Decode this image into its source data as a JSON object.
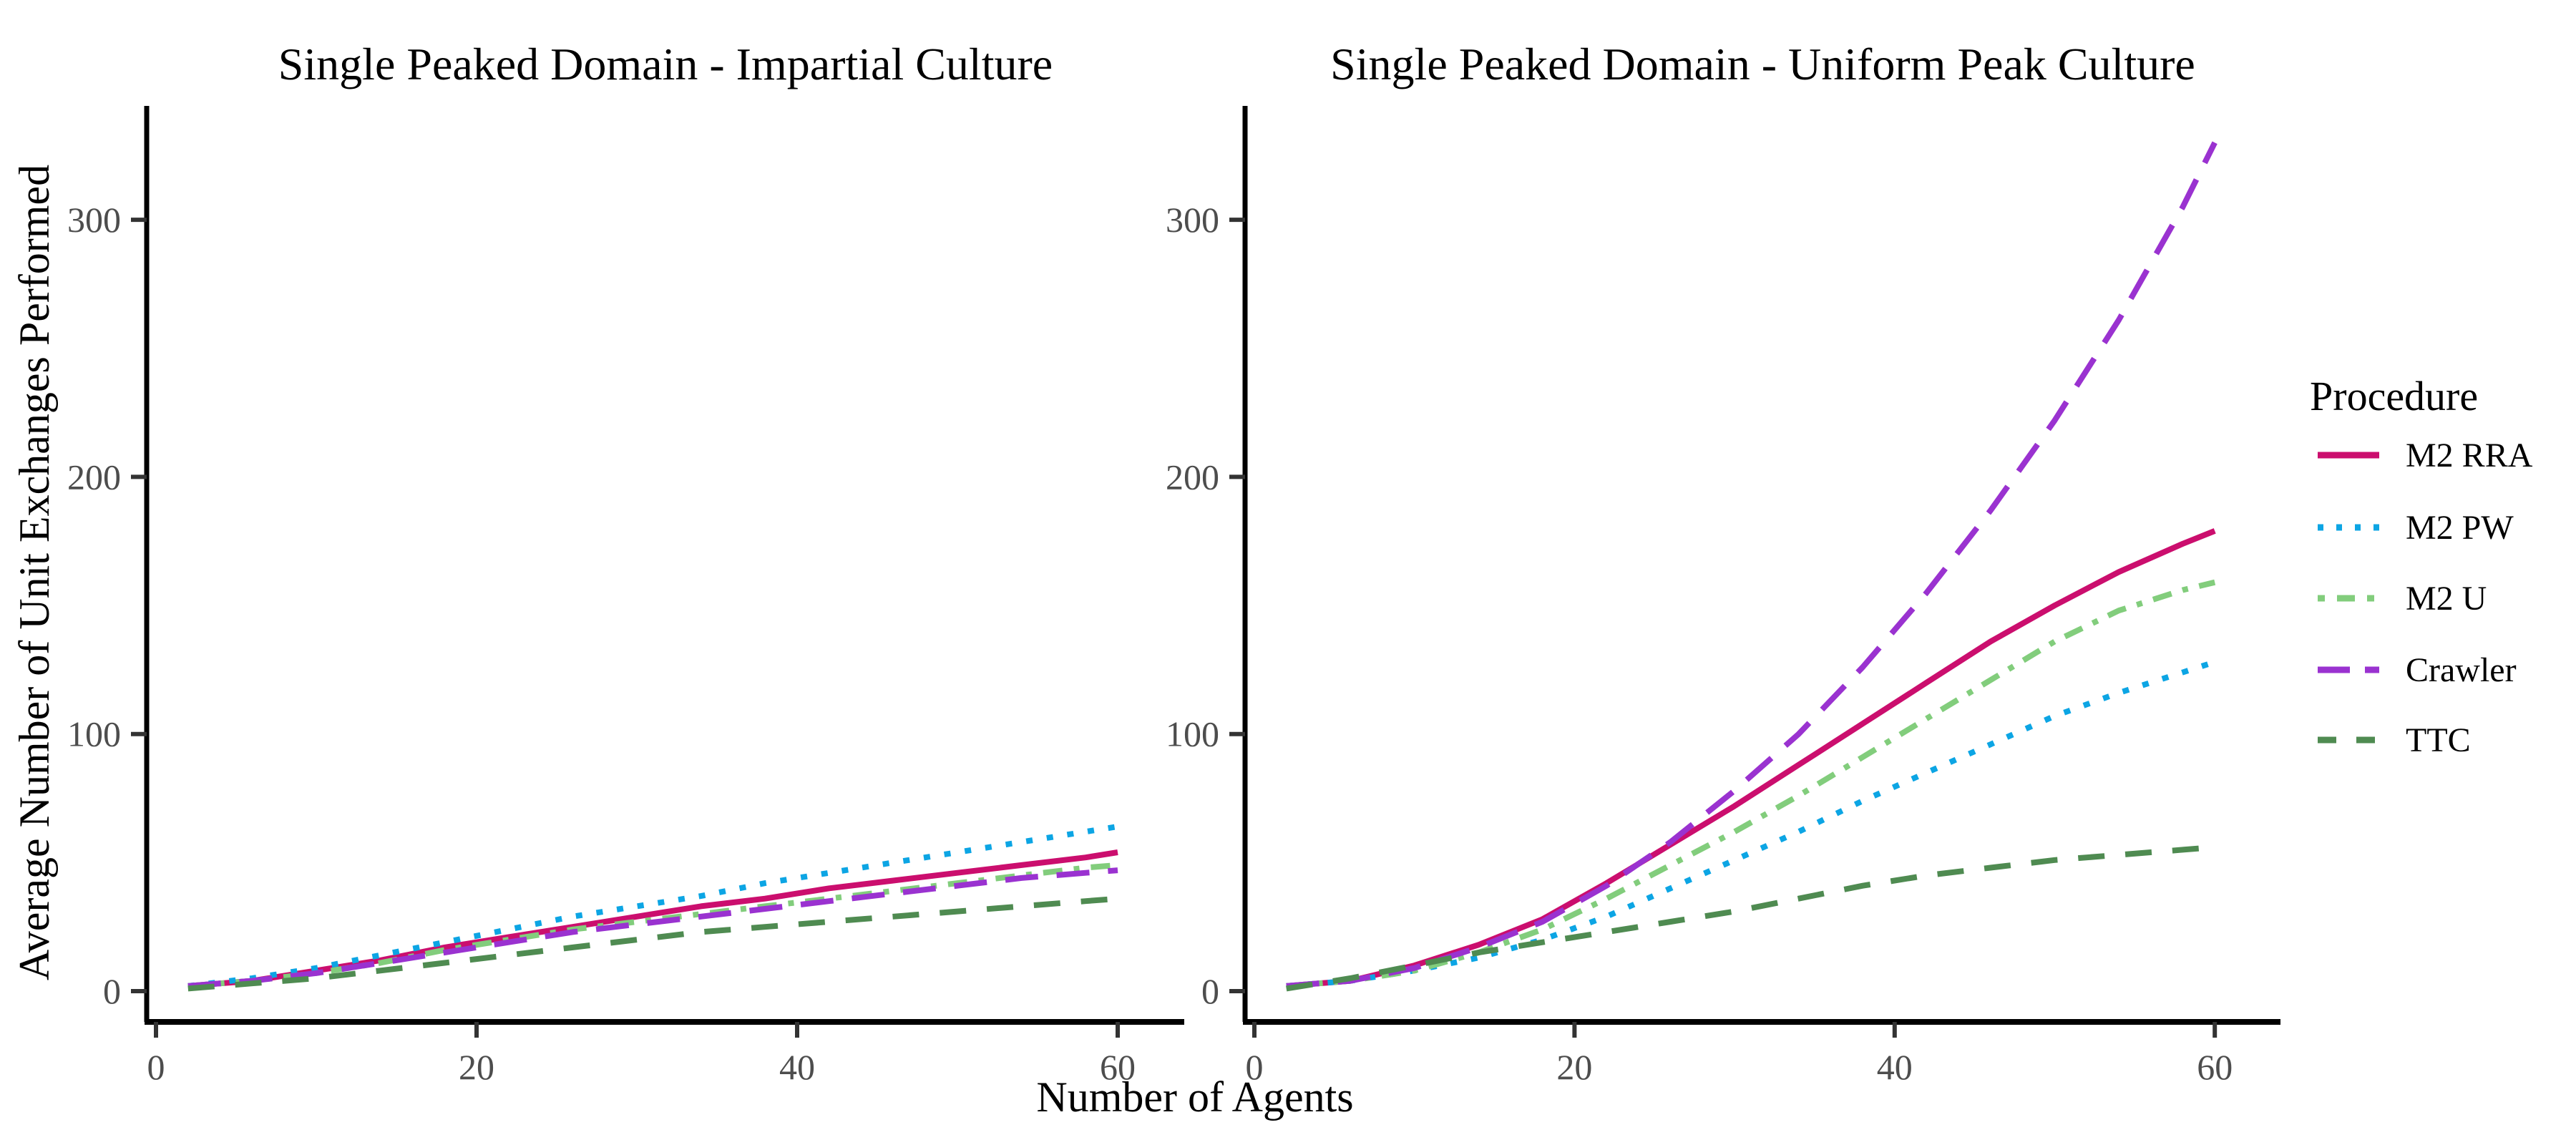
{
  "figure": {
    "x_axis_title": "Number of Agents",
    "y_axis_title": "Average Number of Unit Exchanges Performed"
  },
  "legend": {
    "title": "Procedure",
    "entries": [
      {
        "label": "M2 RRA",
        "color": "#CB0E6E",
        "dash": "solid"
      },
      {
        "label": "M2 PW",
        "color": "#0CA5E4",
        "dash": "dotted"
      },
      {
        "label": "M2 U",
        "color": "#82CD7C",
        "dash": "dashdot"
      },
      {
        "label": "Crawler",
        "color": "#9A32D0",
        "dash": "longdash"
      },
      {
        "label": "TTC",
        "color": "#4F8B51",
        "dash": "dash"
      }
    ]
  },
  "chart_data": [
    {
      "type": "line",
      "title": "Single Peaked Domain - Impartial Culture",
      "xlabel": "Number of Agents",
      "ylabel": "Average Number of Unit Exchanges Performed",
      "xlim": [
        0,
        63
      ],
      "ylim": [
        0,
        345
      ],
      "grid": false,
      "legend_position": "right-shared",
      "xticks": [
        0,
        20,
        40,
        60
      ],
      "yticks": [
        0,
        100,
        200,
        300
      ],
      "x": [
        2,
        6,
        10,
        14,
        18,
        22,
        26,
        30,
        34,
        38,
        42,
        46,
        50,
        54,
        58,
        60
      ],
      "series": [
        {
          "name": "M2 RRA",
          "color": "#CB0E6E",
          "dash": "solid",
          "values": [
            2,
            4,
            8,
            12,
            17,
            21,
            25,
            29,
            33,
            36,
            40,
            43,
            46,
            49,
            52,
            54
          ]
        },
        {
          "name": "M2 PW",
          "color": "#0CA5E4",
          "dash": "dotted",
          "values": [
            2,
            5,
            9,
            14,
            19,
            24,
            29,
            33,
            37,
            42,
            46,
            50,
            54,
            58,
            62,
            64
          ]
        },
        {
          "name": "M2 U",
          "color": "#82CD7C",
          "dash": "dashdot",
          "values": [
            2,
            4,
            7,
            11,
            16,
            20,
            24,
            27,
            30,
            33,
            36,
            39,
            42,
            45,
            48,
            49
          ]
        },
        {
          "name": "Crawler",
          "color": "#9A32D0",
          "dash": "longdash",
          "values": [
            2,
            4,
            7,
            11,
            15,
            19,
            23,
            26,
            29,
            32,
            35,
            38,
            41,
            44,
            46,
            47
          ]
        },
        {
          "name": "TTC",
          "color": "#4F8B51",
          "dash": "dash",
          "values": [
            1,
            3,
            5,
            8,
            11,
            14,
            17,
            20,
            23,
            25,
            27,
            29,
            31,
            33,
            35,
            36
          ]
        }
      ]
    },
    {
      "type": "line",
      "title": "Single Peaked Domain - Uniform Peak Culture",
      "xlabel": "Number of Agents",
      "ylabel": "Average Number of Unit Exchanges Performed",
      "xlim": [
        0,
        63
      ],
      "ylim": [
        0,
        345
      ],
      "grid": false,
      "legend_position": "right-shared",
      "xticks": [
        0,
        20,
        40,
        60
      ],
      "yticks": [
        0,
        100,
        200,
        300
      ],
      "x": [
        2,
        6,
        10,
        14,
        18,
        22,
        26,
        30,
        34,
        38,
        42,
        46,
        50,
        54,
        58,
        60
      ],
      "series": [
        {
          "name": "M2 RRA",
          "color": "#CB0E6E",
          "dash": "solid",
          "values": [
            2,
            4,
            10,
            18,
            28,
            42,
            57,
            72,
            88,
            104,
            120,
            136,
            150,
            163,
            174,
            179
          ]
        },
        {
          "name": "M2 PW",
          "color": "#0CA5E4",
          "dash": "dotted",
          "values": [
            2,
            4,
            8,
            13,
            20,
            29,
            40,
            51,
            62,
            74,
            85,
            96,
            107,
            116,
            124,
            128
          ]
        },
        {
          "name": "M2 U",
          "color": "#82CD7C",
          "dash": "dashdot",
          "values": [
            2,
            4,
            8,
            15,
            24,
            36,
            49,
            62,
            76,
            91,
            106,
            121,
            136,
            148,
            156,
            159
          ]
        },
        {
          "name": "Crawler",
          "color": "#9A32D0",
          "dash": "longdash",
          "values": [
            2,
            4,
            9,
            17,
            27,
            41,
            58,
            78,
            100,
            126,
            155,
            187,
            222,
            261,
            305,
            330
          ]
        },
        {
          "name": "TTC",
          "color": "#4F8B51",
          "dash": "dash",
          "values": [
            1,
            5,
            10,
            15,
            19,
            23,
            27,
            31,
            36,
            41,
            45,
            48,
            51,
            53,
            55,
            56
          ]
        }
      ]
    }
  ]
}
